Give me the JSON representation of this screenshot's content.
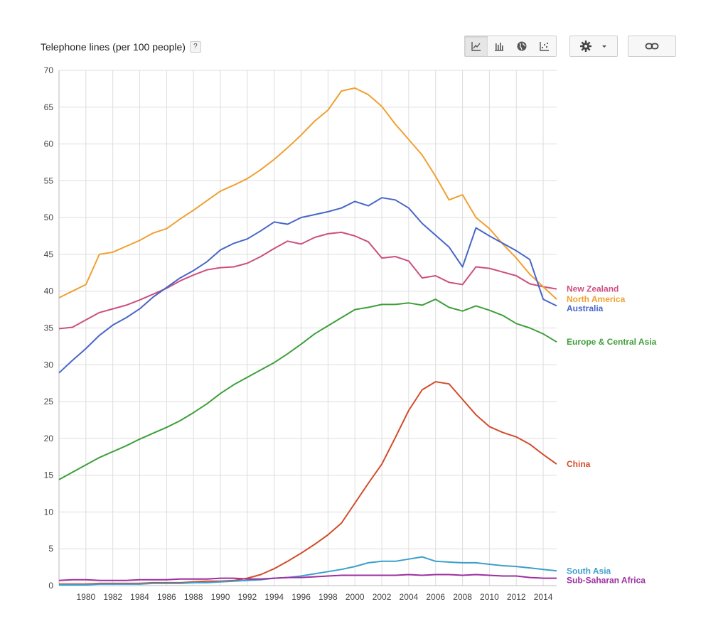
{
  "header": {
    "title": "Telephone lines (per 100 people)",
    "help_label": "?"
  },
  "toolbar": {
    "buttons": [
      {
        "name": "line-chart-icon",
        "active": true
      },
      {
        "name": "bar-chart-icon",
        "active": false
      },
      {
        "name": "globe-map-icon",
        "active": false
      },
      {
        "name": "scatter-chart-icon",
        "active": false
      }
    ],
    "settings_icon": "gear-icon",
    "link_icon": "link-icon"
  },
  "chart_data": {
    "type": "line",
    "title": "Telephone lines (per 100 people)",
    "xlabel": "",
    "ylabel": "",
    "xlim": [
      1978,
      2015
    ],
    "ylim": [
      0,
      70
    ],
    "yticks": [
      0,
      5,
      10,
      15,
      20,
      25,
      30,
      35,
      40,
      45,
      50,
      55,
      60,
      65,
      70
    ],
    "xticks": [
      1980,
      1982,
      1984,
      1986,
      1988,
      1990,
      1992,
      1994,
      1996,
      1998,
      2000,
      2002,
      2004,
      2006,
      2008,
      2010,
      2012,
      2014
    ],
    "grid": true,
    "legend": "right-end-labels",
    "x": [
      1978,
      1979,
      1980,
      1981,
      1982,
      1983,
      1984,
      1985,
      1986,
      1987,
      1988,
      1989,
      1990,
      1991,
      1992,
      1993,
      1994,
      1995,
      1996,
      1997,
      1998,
      1999,
      2000,
      2001,
      2002,
      2003,
      2004,
      2005,
      2006,
      2007,
      2008,
      2009,
      2010,
      2011,
      2012,
      2013,
      2014,
      2015
    ],
    "series": [
      {
        "name": "New Zealand",
        "color": "#cc4f7f",
        "values": [
          34.9,
          35.1,
          36.1,
          37.1,
          37.6,
          38.1,
          38.8,
          39.6,
          40.4,
          41.4,
          42.2,
          42.9,
          43.2,
          43.3,
          43.8,
          44.7,
          45.8,
          46.8,
          46.4,
          47.3,
          47.8,
          48.0,
          47.5,
          46.7,
          44.5,
          44.7,
          44.1,
          41.8,
          42.1,
          41.2,
          40.9,
          43.3,
          43.1,
          42.6,
          42.1,
          41.0,
          40.6,
          40.3
        ]
      },
      {
        "name": "North America",
        "color": "#f0a030",
        "values": [
          39.1,
          40.0,
          40.9,
          45.0,
          45.3,
          46.1,
          46.9,
          47.9,
          48.5,
          49.8,
          51.0,
          52.3,
          53.6,
          54.4,
          55.3,
          56.5,
          57.9,
          59.5,
          61.2,
          63.1,
          64.6,
          67.2,
          67.6,
          66.7,
          65.1,
          62.7,
          60.6,
          58.5,
          55.6,
          52.4,
          53.1,
          50.0,
          48.5,
          46.4,
          44.5,
          42.3,
          40.6,
          38.9
        ]
      },
      {
        "name": "Australia",
        "color": "#4766c8",
        "values": [
          28.9,
          30.6,
          32.2,
          34.0,
          35.4,
          36.4,
          37.6,
          39.2,
          40.5,
          41.8,
          42.8,
          44.0,
          45.6,
          46.5,
          47.1,
          48.2,
          49.4,
          49.1,
          50.0,
          50.4,
          50.8,
          51.3,
          52.2,
          51.6,
          52.7,
          52.4,
          51.3,
          49.2,
          47.6,
          46.0,
          43.3,
          48.6,
          47.5,
          46.5,
          45.5,
          44.3,
          38.9,
          38.0
        ]
      },
      {
        "name": "Europe & Central Asia",
        "color": "#3e9f3a",
        "values": [
          14.4,
          15.4,
          16.4,
          17.4,
          18.2,
          19.0,
          19.9,
          20.7,
          21.5,
          22.4,
          23.5,
          24.7,
          26.1,
          27.3,
          28.3,
          29.3,
          30.3,
          31.5,
          32.8,
          34.2,
          35.3,
          36.4,
          37.5,
          37.8,
          38.2,
          38.2,
          38.4,
          38.1,
          38.9,
          37.8,
          37.3,
          38.0,
          37.4,
          36.7,
          35.6,
          35.0,
          34.2,
          33.1
        ]
      },
      {
        "name": "China",
        "color": "#d24c2a",
        "values": [
          0.2,
          0.2,
          0.2,
          0.3,
          0.3,
          0.3,
          0.3,
          0.4,
          0.4,
          0.4,
          0.5,
          0.6,
          0.6,
          0.7,
          1.0,
          1.5,
          2.3,
          3.3,
          4.4,
          5.6,
          6.9,
          8.5,
          11.2,
          13.9,
          16.5,
          20.1,
          23.8,
          26.6,
          27.7,
          27.4,
          25.3,
          23.2,
          21.6,
          20.8,
          20.2,
          19.2,
          17.8,
          16.5
        ]
      },
      {
        "name": "South Asia",
        "color": "#3b9fcb",
        "values": [
          0.1,
          0.1,
          0.1,
          0.2,
          0.2,
          0.2,
          0.2,
          0.3,
          0.3,
          0.3,
          0.4,
          0.4,
          0.5,
          0.6,
          0.7,
          0.8,
          1.0,
          1.1,
          1.3,
          1.6,
          1.9,
          2.2,
          2.6,
          3.1,
          3.3,
          3.3,
          3.6,
          3.9,
          3.3,
          3.2,
          3.1,
          3.1,
          2.9,
          2.7,
          2.6,
          2.4,
          2.2,
          2.0
        ]
      },
      {
        "name": "Sub-Saharan Africa",
        "color": "#9c2fa0",
        "values": [
          0.7,
          0.8,
          0.8,
          0.7,
          0.7,
          0.7,
          0.8,
          0.8,
          0.8,
          0.9,
          0.9,
          0.9,
          1.0,
          1.0,
          0.9,
          0.9,
          1.0,
          1.1,
          1.1,
          1.2,
          1.3,
          1.4,
          1.4,
          1.4,
          1.4,
          1.4,
          1.5,
          1.4,
          1.5,
          1.5,
          1.4,
          1.5,
          1.4,
          1.3,
          1.3,
          1.1,
          1.0,
          1.0
        ]
      }
    ]
  }
}
